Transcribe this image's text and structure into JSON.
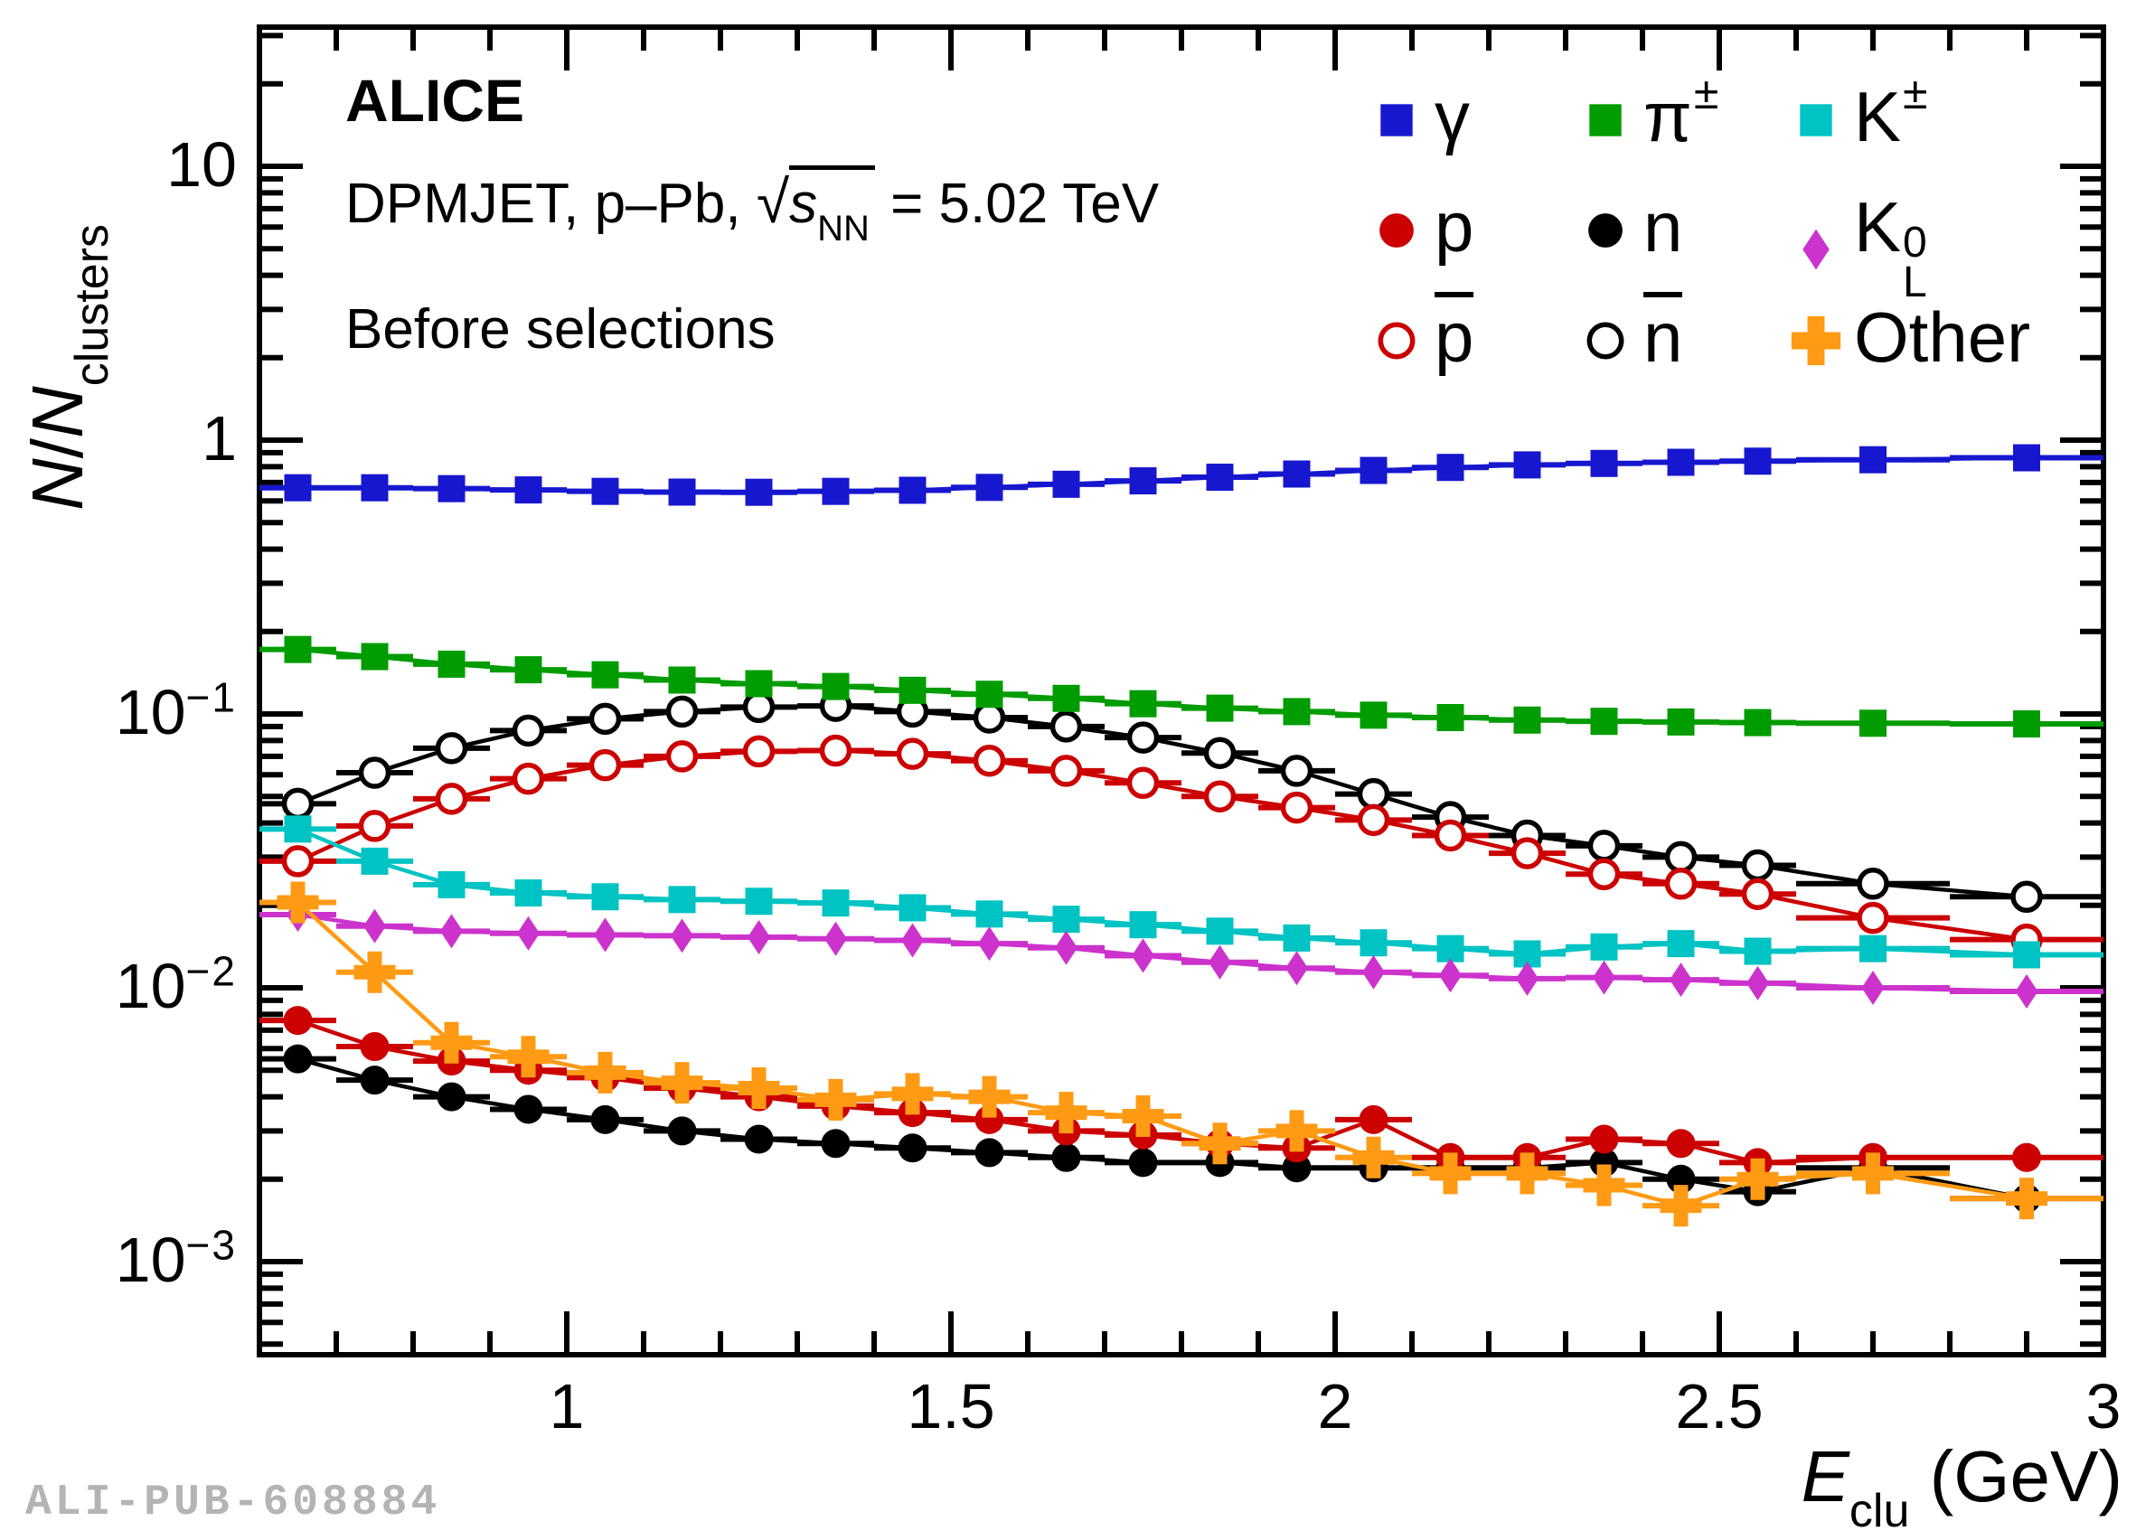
{
  "watermark": "ALI-PUB-608884",
  "header": {
    "experiment": "ALICE",
    "model_line": {
      "prefix": "DPMJET, p–Pb, ",
      "sqrt_symbol": "√",
      "sqrt_var": "s",
      "sqrt_sub": "NN",
      "suffix": " = 5.02 TeV"
    },
    "selection_line": "Before selections"
  },
  "axes": {
    "x": {
      "title_main": "E",
      "title_sub": "clu",
      "title_unit": " (GeV)",
      "ticks": [
        {
          "v": 1,
          "label": "1"
        },
        {
          "v": 1.5,
          "label": "1.5"
        },
        {
          "v": 2,
          "label": "2"
        },
        {
          "v": 2.5,
          "label": "2.5"
        },
        {
          "v": 3,
          "label": "3"
        }
      ]
    },
    "y": {
      "title_num": "N",
      "title_slash": "/",
      "title_den": "N",
      "title_sub": "clusters",
      "ticks": [
        {
          "v": 10,
          "label": "10",
          "exp": ""
        },
        {
          "v": 1,
          "label": "1",
          "exp": ""
        },
        {
          "v": 0.1,
          "label": "10",
          "exp": "−1"
        },
        {
          "v": 0.01,
          "label": "10",
          "exp": "−2"
        },
        {
          "v": 0.001,
          "label": "10",
          "exp": "−3"
        }
      ]
    }
  },
  "legend": {
    "columns": 3,
    "entries": [
      {
        "series": "gamma",
        "label": "γ"
      },
      {
        "series": "pion",
        "label": "π",
        "sup": "±"
      },
      {
        "series": "kpm",
        "label": "K",
        "sup": "±"
      },
      {
        "series": "p",
        "label": "p"
      },
      {
        "series": "n",
        "label": "n"
      },
      {
        "series": "k0l",
        "label": "K",
        "stack_sup": "0",
        "stack_sub": "L"
      },
      {
        "series": "pbar",
        "label": "p",
        "bar": true
      },
      {
        "series": "nbar",
        "label": "n",
        "bar": true
      },
      {
        "series": "other",
        "label": "Other"
      }
    ]
  },
  "chart_data": {
    "type": "scatter",
    "title": "",
    "xlabel": "E_clu (GeV)",
    "ylabel": "N/N_clusters",
    "annotations": [
      "ALICE",
      "DPMJET, p–Pb, √s_NN = 5.02 TeV",
      "Before selections"
    ],
    "legend_position": "top-right",
    "grid": false,
    "log_y": true,
    "xlim": [
      0.6,
      3.0
    ],
    "ylim": [
      0.00046,
      32
    ],
    "x": [
      0.65,
      0.75,
      0.85,
      0.95,
      1.05,
      1.15,
      1.25,
      1.35,
      1.45,
      1.55,
      1.65,
      1.75,
      1.85,
      1.95,
      2.05,
      2.15,
      2.25,
      2.35,
      2.45,
      2.55,
      2.7,
      2.9
    ],
    "xerr": [
      0.05,
      0.05,
      0.05,
      0.05,
      0.05,
      0.05,
      0.05,
      0.05,
      0.05,
      0.05,
      0.05,
      0.05,
      0.05,
      0.05,
      0.05,
      0.05,
      0.05,
      0.05,
      0.05,
      0.05,
      0.1,
      0.1
    ],
    "draw_order": [
      "nbar",
      "pbar",
      "pion",
      "gamma",
      "kpm",
      "k0l",
      "n",
      "p",
      "other"
    ],
    "series": [
      {
        "id": "gamma",
        "name": "γ",
        "marker": "square",
        "open": false,
        "color": "#1717cf",
        "values": [
          0.67,
          0.67,
          0.665,
          0.658,
          0.65,
          0.646,
          0.645,
          0.65,
          0.656,
          0.672,
          0.69,
          0.71,
          0.732,
          0.752,
          0.775,
          0.795,
          0.812,
          0.822,
          0.83,
          0.838,
          0.848,
          0.862
        ]
      },
      {
        "id": "pion",
        "name": "π±",
        "marker": "square",
        "open": false,
        "color": "#009c00",
        "values": [
          0.172,
          0.162,
          0.152,
          0.145,
          0.139,
          0.133,
          0.129,
          0.126,
          0.122,
          0.118,
          0.114,
          0.109,
          0.105,
          0.102,
          0.099,
          0.097,
          0.095,
          0.094,
          0.0935,
          0.093,
          0.0925,
          0.092
        ]
      },
      {
        "id": "kpm",
        "name": "K±",
        "marker": "square",
        "open": false,
        "color": "#00c3c3",
        "values": [
          0.038,
          0.029,
          0.0238,
          0.0222,
          0.0215,
          0.021,
          0.0207,
          0.0204,
          0.0196,
          0.0186,
          0.0178,
          0.017,
          0.0161,
          0.0152,
          0.0146,
          0.0139,
          0.0133,
          0.0141,
          0.0145,
          0.0136,
          0.0139,
          0.0132
        ]
      },
      {
        "id": "p",
        "name": "p",
        "marker": "circle",
        "open": false,
        "color": "#cc0000",
        "values": [
          0.0076,
          0.0061,
          0.0054,
          0.005,
          0.0047,
          0.0043,
          0.004,
          0.0037,
          0.0035,
          0.0033,
          0.003,
          0.0029,
          0.0027,
          0.0026,
          0.0033,
          0.0024,
          0.0024,
          0.0028,
          0.0027,
          0.0023,
          0.0024,
          0.0024
        ]
      },
      {
        "id": "n",
        "name": "n",
        "marker": "circle",
        "open": false,
        "color": "#000000",
        "values": [
          0.0055,
          0.0046,
          0.004,
          0.0036,
          0.0033,
          0.003,
          0.0028,
          0.0027,
          0.0026,
          0.0025,
          0.0024,
          0.0023,
          0.0023,
          0.0022,
          0.0022,
          0.0022,
          0.0022,
          0.0023,
          0.002,
          0.0018,
          0.0022,
          0.0017
        ]
      },
      {
        "id": "k0l",
        "name": "K0L",
        "marker": "diamond",
        "open": false,
        "color": "#cc33cc",
        "values": [
          0.0185,
          0.0168,
          0.0161,
          0.0158,
          0.0156,
          0.0155,
          0.0153,
          0.0151,
          0.0149,
          0.0145,
          0.014,
          0.0131,
          0.0124,
          0.0118,
          0.0114,
          0.0111,
          0.0108,
          0.0109,
          0.0107,
          0.0104,
          0.01,
          0.0097
        ]
      },
      {
        "id": "pbar",
        "name": "p̄",
        "marker": "circle",
        "open": true,
        "color": "#cc0000",
        "values": [
          0.029,
          0.039,
          0.049,
          0.058,
          0.065,
          0.07,
          0.073,
          0.0735,
          0.0715,
          0.0675,
          0.062,
          0.056,
          0.05,
          0.0455,
          0.041,
          0.036,
          0.031,
          0.026,
          0.024,
          0.022,
          0.018,
          0.015
        ]
      },
      {
        "id": "nbar",
        "name": "n̄",
        "marker": "circle",
        "open": true,
        "color": "#000000",
        "values": [
          0.047,
          0.061,
          0.075,
          0.087,
          0.096,
          0.102,
          0.106,
          0.107,
          0.102,
          0.097,
          0.09,
          0.082,
          0.072,
          0.062,
          0.051,
          0.042,
          0.036,
          0.033,
          0.03,
          0.028,
          0.024,
          0.0215
        ]
      },
      {
        "id": "other",
        "name": "Other",
        "marker": "cross",
        "open": false,
        "color": "#ff9a14",
        "values": [
          0.0205,
          0.0114,
          0.0063,
          0.0056,
          0.0049,
          0.0045,
          0.0043,
          0.0039,
          0.0041,
          0.004,
          0.0035,
          0.0034,
          0.0027,
          0.003,
          0.0024,
          0.0021,
          0.0021,
          0.0019,
          0.0016,
          0.002,
          0.0021,
          0.0017
        ]
      }
    ]
  }
}
